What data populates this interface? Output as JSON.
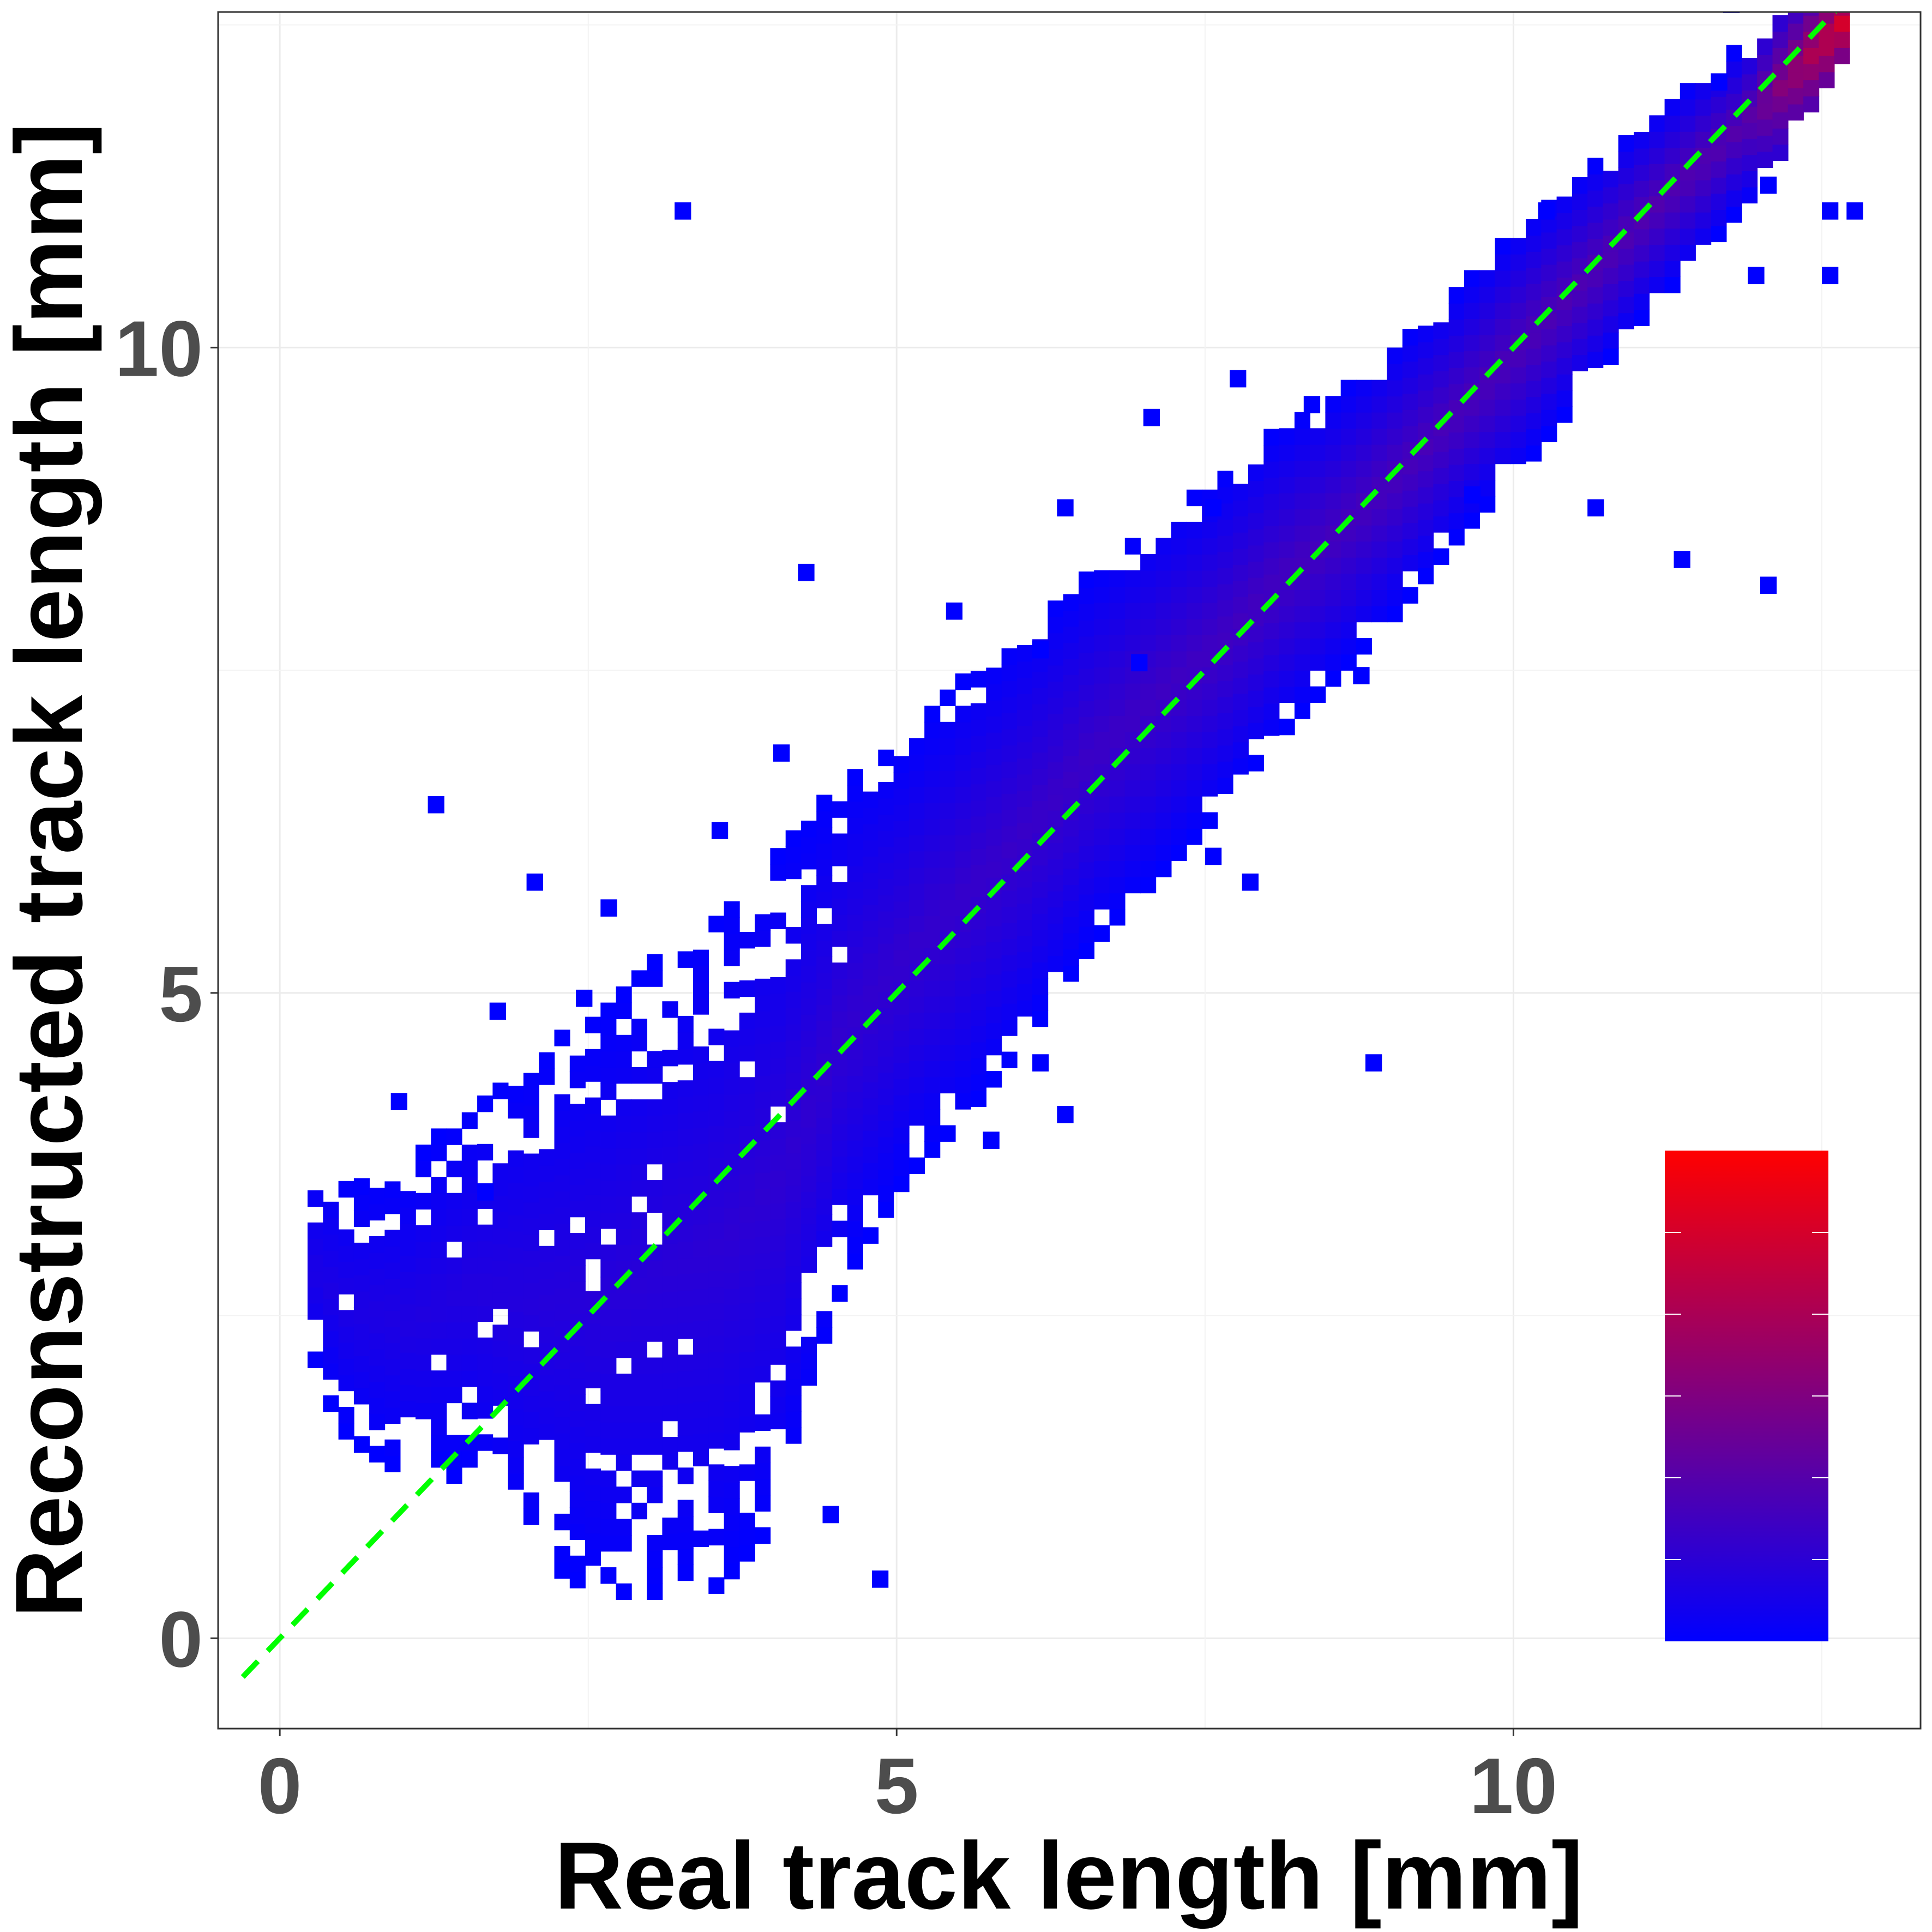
{
  "chart_data": {
    "type": "heatmap",
    "title": "",
    "xlabel": "Real track length [mm]",
    "ylabel": "Reconstructed track length [mm]",
    "xlim": [
      -0.5,
      13.3
    ],
    "ylim": [
      -0.7,
      12.6
    ],
    "x_ticks": [
      "0",
      "5",
      "10"
    ],
    "x_tick_values": [
      0,
      5,
      10
    ],
    "y_ticks": [
      "0",
      "5",
      "10"
    ],
    "y_tick_values": [
      0,
      5,
      10
    ],
    "grid": true,
    "bin_width": 0.125,
    "reference_line": {
      "slope": 1,
      "intercept": 0,
      "style": "dashed",
      "color": "#00ff00"
    },
    "band": [
      {
        "x": 0.15,
        "ylo": 2.1,
        "yhi": 3.6
      },
      {
        "x": 0.5,
        "ylo": 1.5,
        "yhi": 3.5
      },
      {
        "x": 1.0,
        "ylo": 1.2,
        "yhi": 3.6
      },
      {
        "x": 1.5,
        "ylo": 1.2,
        "yhi": 4.1
      },
      {
        "x": 2.0,
        "ylo": 0.6,
        "yhi": 4.5
      },
      {
        "x": 2.5,
        "ylo": 0.3,
        "yhi": 4.8
      },
      {
        "x": 3.0,
        "ylo": 0.3,
        "yhi": 5.2
      },
      {
        "x": 3.5,
        "ylo": 0.35,
        "yhi": 5.6
      },
      {
        "x": 4.0,
        "ylo": 0.9,
        "yhi": 6.1
      },
      {
        "x": 4.5,
        "ylo": 2.7,
        "yhi": 6.6
      },
      {
        "x": 5.0,
        "ylo": 3.5,
        "yhi": 6.9
      },
      {
        "x": 5.5,
        "ylo": 4.0,
        "yhi": 7.4
      },
      {
        "x": 6.0,
        "ylo": 4.6,
        "yhi": 7.8
      },
      {
        "x": 6.5,
        "ylo": 5.3,
        "yhi": 8.2
      },
      {
        "x": 7.0,
        "ylo": 5.8,
        "yhi": 8.6
      },
      {
        "x": 7.5,
        "ylo": 6.3,
        "yhi": 8.9
      },
      {
        "x": 8.0,
        "ylo": 6.9,
        "yhi": 9.3
      },
      {
        "x": 8.5,
        "ylo": 7.4,
        "yhi": 9.6
      },
      {
        "x": 9.0,
        "ylo": 7.9,
        "yhi": 10.0
      },
      {
        "x": 9.5,
        "ylo": 8.5,
        "yhi": 10.4
      },
      {
        "x": 10.0,
        "ylo": 9.0,
        "yhi": 10.9
      },
      {
        "x": 10.5,
        "ylo": 9.6,
        "yhi": 11.3
      },
      {
        "x": 11.0,
        "ylo": 10.2,
        "yhi": 11.7
      },
      {
        "x": 11.5,
        "ylo": 10.7,
        "yhi": 12.1
      },
      {
        "x": 12.0,
        "ylo": 11.3,
        "yhi": 12.4
      },
      {
        "x": 12.6,
        "ylo": 12.2,
        "yhi": 12.7
      }
    ],
    "outliers": [
      [
        3.2,
        11.0
      ],
      [
        4.2,
        8.2
      ],
      [
        4.0,
        6.8
      ],
      [
        2.0,
        5.8
      ],
      [
        2.6,
        5.6
      ],
      [
        3.5,
        6.2
      ],
      [
        5.4,
        7.9
      ],
      [
        6.1,
        7.6
      ],
      [
        6.3,
        8.7
      ],
      [
        6.9,
        7.5
      ],
      [
        7.0,
        9.4
      ],
      [
        7.5,
        6.0
      ],
      [
        7.5,
        8.7
      ],
      [
        7.7,
        9.7
      ],
      [
        7.8,
        5.8
      ],
      [
        8.3,
        9.5
      ],
      [
        8.7,
        7.4
      ],
      [
        8.8,
        4.4
      ],
      [
        9.6,
        8.8
      ],
      [
        10.2,
        11.0
      ],
      [
        10.6,
        8.7
      ],
      [
        11.3,
        8.3
      ],
      [
        11.6,
        12.0
      ],
      [
        11.7,
        12.6
      ],
      [
        11.9,
        10.5
      ],
      [
        12.0,
        8.1
      ],
      [
        12.0,
        11.2
      ],
      [
        12.5,
        11.0
      ],
      [
        12.7,
        11.0
      ],
      [
        12.5,
        10.5
      ],
      [
        4.8,
        0.4
      ],
      [
        4.4,
        0.9
      ],
      [
        1.7,
        4.8
      ],
      [
        6.3,
        4.0
      ],
      [
        5.7,
        3.8
      ],
      [
        1.6,
        3.4
      ],
      [
        0.9,
        4.1
      ],
      [
        6.1,
        4.4
      ],
      [
        2.4,
        4.9
      ],
      [
        1.2,
        6.4
      ]
    ],
    "colorbar": {
      "low_color": "#0000ff",
      "high_color": "#ff0000",
      "position": "inside-bottom-right",
      "labels": []
    }
  }
}
